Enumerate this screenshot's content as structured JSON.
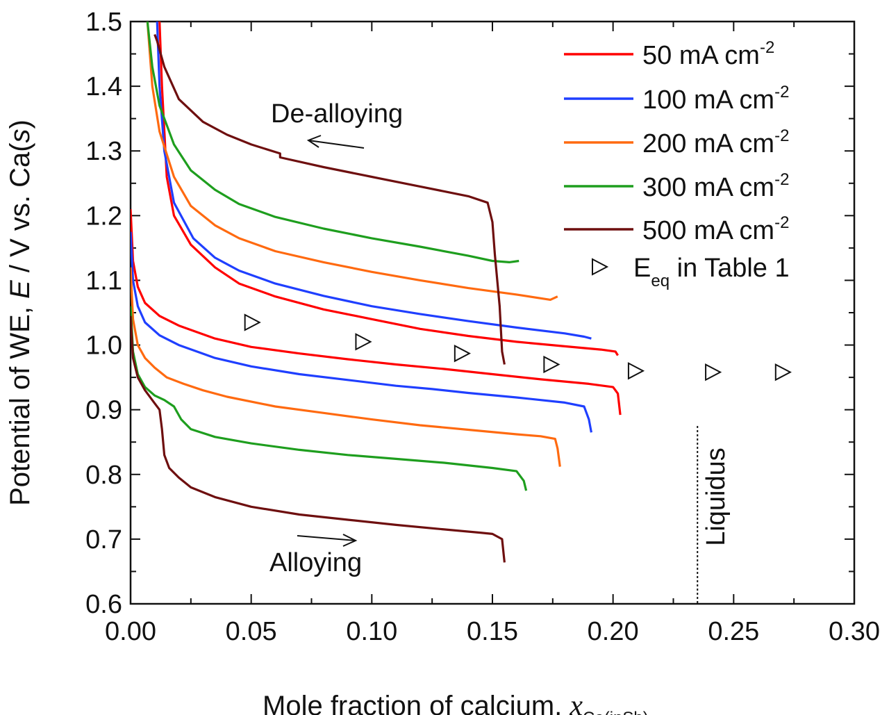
{
  "chart_data": {
    "type": "line",
    "xlabel": {
      "main": "Mole fraction of calcium, ",
      "var": "x",
      "sub": "Ca(inSb)"
    },
    "ylabel": {
      "pre": "Potential of WE, ",
      "var": "E",
      "post": " / V vs. Ca(",
      "svar": "s",
      "end": ")"
    },
    "xlim": [
      0.0,
      0.3
    ],
    "ylim": [
      0.6,
      1.5
    ],
    "x_ticks": [
      "0.00",
      "0.05",
      "0.10",
      "0.15",
      "0.20",
      "0.25",
      "0.30"
    ],
    "y_ticks": [
      "0.6",
      "0.7",
      "0.8",
      "0.9",
      "1.0",
      "1.1",
      "1.2",
      "1.3",
      "1.4",
      "1.5"
    ],
    "series": [
      {
        "name": "50 mA cm-2",
        "label_main": "50 mA cm",
        "label_sup": "-2",
        "color": "#ff0000",
        "alloying": [
          [
            0.0,
            1.21
          ],
          [
            0.001,
            1.13
          ],
          [
            0.003,
            1.09
          ],
          [
            0.006,
            1.065
          ],
          [
            0.012,
            1.045
          ],
          [
            0.02,
            1.03
          ],
          [
            0.035,
            1.01
          ],
          [
            0.05,
            0.997
          ],
          [
            0.07,
            0.987
          ],
          [
            0.09,
            0.978
          ],
          [
            0.11,
            0.97
          ],
          [
            0.13,
            0.963
          ],
          [
            0.15,
            0.955
          ],
          [
            0.17,
            0.947
          ],
          [
            0.19,
            0.94
          ],
          [
            0.2,
            0.935
          ],
          [
            0.202,
            0.925
          ],
          [
            0.203,
            0.892
          ]
        ],
        "dealloying": [
          [
            0.202,
            0.984
          ],
          [
            0.201,
            0.99
          ],
          [
            0.195,
            0.993
          ],
          [
            0.18,
            0.998
          ],
          [
            0.16,
            1.005
          ],
          [
            0.14,
            1.014
          ],
          [
            0.12,
            1.025
          ],
          [
            0.1,
            1.04
          ],
          [
            0.08,
            1.055
          ],
          [
            0.06,
            1.075
          ],
          [
            0.045,
            1.095
          ],
          [
            0.035,
            1.12
          ],
          [
            0.025,
            1.155
          ],
          [
            0.018,
            1.2
          ],
          [
            0.015,
            1.26
          ],
          [
            0.013,
            1.4
          ],
          [
            0.012,
            1.5
          ]
        ]
      },
      {
        "name": "100 mA cm-2",
        "label_main": "100 mA cm",
        "label_sup": "-2",
        "color": "#1f3fff",
        "alloying": [
          [
            0.0,
            1.175
          ],
          [
            0.001,
            1.1
          ],
          [
            0.003,
            1.06
          ],
          [
            0.006,
            1.035
          ],
          [
            0.012,
            1.015
          ],
          [
            0.02,
            1.0
          ],
          [
            0.035,
            0.98
          ],
          [
            0.05,
            0.967
          ],
          [
            0.07,
            0.955
          ],
          [
            0.09,
            0.946
          ],
          [
            0.11,
            0.937
          ],
          [
            0.125,
            0.932
          ],
          [
            0.14,
            0.926
          ],
          [
            0.16,
            0.919
          ],
          [
            0.18,
            0.911
          ],
          [
            0.188,
            0.905
          ],
          [
            0.19,
            0.885
          ],
          [
            0.191,
            0.865
          ]
        ],
        "dealloying": [
          [
            0.191,
            1.01
          ],
          [
            0.188,
            1.013
          ],
          [
            0.18,
            1.018
          ],
          [
            0.16,
            1.027
          ],
          [
            0.14,
            1.037
          ],
          [
            0.12,
            1.048
          ],
          [
            0.1,
            1.06
          ],
          [
            0.08,
            1.076
          ],
          [
            0.06,
            1.095
          ],
          [
            0.045,
            1.115
          ],
          [
            0.035,
            1.135
          ],
          [
            0.026,
            1.165
          ],
          [
            0.018,
            1.22
          ],
          [
            0.014,
            1.3
          ],
          [
            0.012,
            1.4
          ],
          [
            0.011,
            1.5
          ]
        ]
      },
      {
        "name": "200 mA cm-2",
        "label_main": "200 mA cm",
        "label_sup": "-2",
        "color": "#ff6a10",
        "alloying": [
          [
            0.0,
            1.12
          ],
          [
            0.001,
            1.04
          ],
          [
            0.003,
            1.0
          ],
          [
            0.006,
            0.98
          ],
          [
            0.01,
            0.965
          ],
          [
            0.015,
            0.95
          ],
          [
            0.022,
            0.94
          ],
          [
            0.03,
            0.93
          ],
          [
            0.04,
            0.92
          ],
          [
            0.06,
            0.905
          ],
          [
            0.08,
            0.895
          ],
          [
            0.1,
            0.885
          ],
          [
            0.12,
            0.876
          ],
          [
            0.14,
            0.869
          ],
          [
            0.16,
            0.862
          ],
          [
            0.17,
            0.859
          ],
          [
            0.176,
            0.855
          ],
          [
            0.177,
            0.84
          ],
          [
            0.178,
            0.812
          ]
        ],
        "dealloying": [
          [
            0.177,
            1.075
          ],
          [
            0.174,
            1.07
          ],
          [
            0.16,
            1.078
          ],
          [
            0.14,
            1.088
          ],
          [
            0.12,
            1.1
          ],
          [
            0.1,
            1.113
          ],
          [
            0.08,
            1.128
          ],
          [
            0.06,
            1.145
          ],
          [
            0.045,
            1.165
          ],
          [
            0.035,
            1.185
          ],
          [
            0.025,
            1.215
          ],
          [
            0.018,
            1.26
          ],
          [
            0.012,
            1.33
          ],
          [
            0.009,
            1.4
          ],
          [
            0.007,
            1.5
          ]
        ]
      },
      {
        "name": "300 mA cm-2",
        "label_main": "300 mA cm",
        "label_sup": "-2",
        "color": "#1e9e1e",
        "alloying": [
          [
            0.0,
            1.06
          ],
          [
            0.001,
            0.99
          ],
          [
            0.003,
            0.955
          ],
          [
            0.006,
            0.935
          ],
          [
            0.01,
            0.922
          ],
          [
            0.014,
            0.915
          ],
          [
            0.018,
            0.905
          ],
          [
            0.021,
            0.885
          ],
          [
            0.025,
            0.87
          ],
          [
            0.035,
            0.858
          ],
          [
            0.05,
            0.848
          ],
          [
            0.07,
            0.838
          ],
          [
            0.09,
            0.83
          ],
          [
            0.11,
            0.824
          ],
          [
            0.13,
            0.818
          ],
          [
            0.15,
            0.81
          ],
          [
            0.16,
            0.805
          ],
          [
            0.163,
            0.79
          ],
          [
            0.164,
            0.775
          ]
        ],
        "dealloying": [
          [
            0.161,
            1.13
          ],
          [
            0.157,
            1.128
          ],
          [
            0.15,
            1.13
          ],
          [
            0.14,
            1.138
          ],
          [
            0.12,
            1.152
          ],
          [
            0.1,
            1.165
          ],
          [
            0.08,
            1.18
          ],
          [
            0.06,
            1.198
          ],
          [
            0.045,
            1.218
          ],
          [
            0.035,
            1.24
          ],
          [
            0.025,
            1.27
          ],
          [
            0.018,
            1.31
          ],
          [
            0.012,
            1.37
          ],
          [
            0.009,
            1.43
          ],
          [
            0.007,
            1.5
          ]
        ]
      },
      {
        "name": "500 mA cm-2",
        "label_main": "500 mA cm",
        "label_sup": "-2",
        "color": "#6e0f0f",
        "alloying": [
          [
            0.0,
            1.045
          ],
          [
            0.001,
            0.98
          ],
          [
            0.003,
            0.95
          ],
          [
            0.006,
            0.93
          ],
          [
            0.01,
            0.91
          ],
          [
            0.012,
            0.9
          ],
          [
            0.013,
            0.87
          ],
          [
            0.014,
            0.83
          ],
          [
            0.016,
            0.81
          ],
          [
            0.02,
            0.795
          ],
          [
            0.025,
            0.78
          ],
          [
            0.035,
            0.765
          ],
          [
            0.05,
            0.75
          ],
          [
            0.07,
            0.738
          ],
          [
            0.09,
            0.73
          ],
          [
            0.11,
            0.722
          ],
          [
            0.13,
            0.715
          ],
          [
            0.145,
            0.71
          ],
          [
            0.15,
            0.708
          ],
          [
            0.154,
            0.7
          ],
          [
            0.155,
            0.664
          ]
        ],
        "dealloying": [
          [
            0.155,
            0.97
          ],
          [
            0.154,
            0.99
          ],
          [
            0.153,
            1.06
          ],
          [
            0.151,
            1.14
          ],
          [
            0.15,
            1.19
          ],
          [
            0.148,
            1.22
          ],
          [
            0.14,
            1.23
          ],
          [
            0.12,
            1.245
          ],
          [
            0.1,
            1.26
          ],
          [
            0.08,
            1.275
          ],
          [
            0.062,
            1.29
          ],
          [
            0.062,
            1.296
          ],
          [
            0.05,
            1.31
          ],
          [
            0.04,
            1.325
          ],
          [
            0.03,
            1.345
          ],
          [
            0.02,
            1.38
          ],
          [
            0.014,
            1.43
          ],
          [
            0.011,
            1.47
          ],
          [
            0.01,
            1.48
          ]
        ]
      }
    ],
    "eq_points": {
      "name": "Eeq in Table 1",
      "label_main": "E",
      "label_sub": "eq",
      "label_rest": " in Table 1",
      "points": [
        [
          0.05,
          1.035
        ],
        [
          0.096,
          1.005
        ],
        [
          0.137,
          0.987
        ],
        [
          0.174,
          0.97
        ],
        [
          0.209,
          0.96
        ],
        [
          0.241,
          0.958
        ],
        [
          0.27,
          0.958
        ]
      ]
    },
    "liquidus": {
      "x": 0.235,
      "label": "Liquidus",
      "y_range": [
        0.6,
        0.875
      ]
    },
    "annotations": {
      "dealloying": "De-alloying",
      "alloying": "Alloying"
    },
    "grid": false,
    "legend_position": "top-right"
  }
}
